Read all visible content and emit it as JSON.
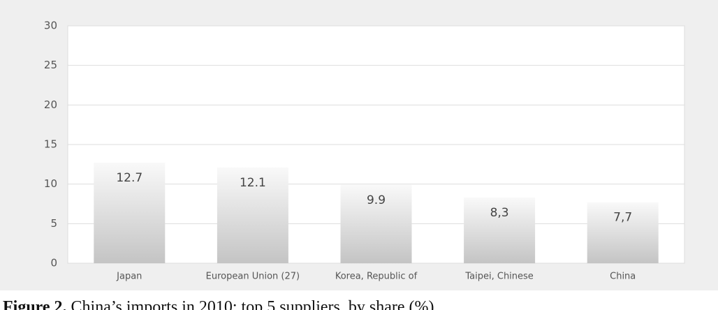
{
  "chart_data": {
    "type": "bar",
    "caption_label": "Figure 2.",
    "caption": "China’s imports in 2010: top 5 suppliers, by share (%)",
    "categories": [
      "Japan",
      "European Union (27)",
      "Korea, Republic of",
      "Taipei, Chinese",
      "China"
    ],
    "values": [
      12.7,
      12.1,
      9.9,
      8.3,
      7.7
    ],
    "value_labels": [
      "12.7",
      "12.1",
      "9.9",
      "8,3",
      "7,7"
    ],
    "color": "#c4c4c4",
    "ylim": [
      0,
      30
    ],
    "yticks": [
      0,
      5,
      10,
      15,
      20,
      25,
      30
    ],
    "grid": true
  }
}
